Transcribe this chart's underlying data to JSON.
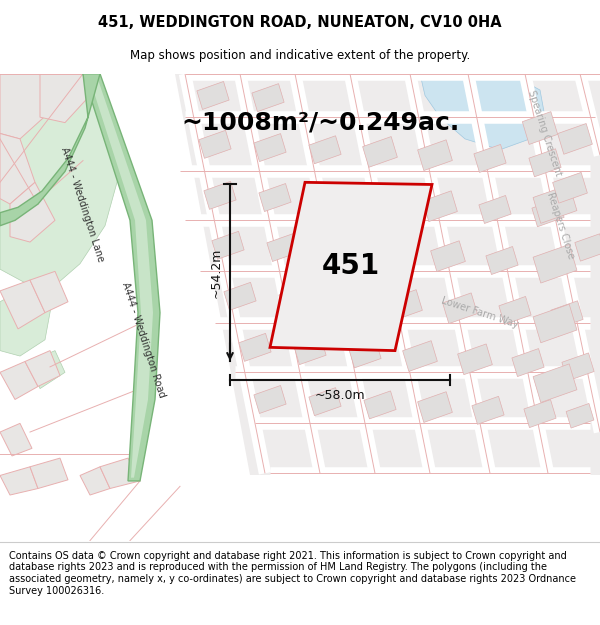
{
  "title": "451, WEDDINGTON ROAD, NUNEATON, CV10 0HA",
  "subtitle": "Map shows position and indicative extent of the property.",
  "area_text": "~1008m²/~0.249ac.",
  "label_451": "451",
  "dim_vertical": "~54.2m",
  "dim_horizontal": "~58.0m",
  "footer": "Contains OS data © Crown copyright and database right 2021. This information is subject to Crown copyright and database rights 2023 and is reproduced with the permission of HM Land Registry. The polygons (including the associated geometry, namely x, y co-ordinates) are subject to Crown copyright and database rights 2023 Ordnance Survey 100026316.",
  "bg_map": "#f5f4f2",
  "parcel_fill": "#e8e6e4",
  "parcel_border": "#e8b0b0",
  "road_fill": "#ffffff",
  "road_border": "#e8b0b0",
  "green_road_fill": "#a8d4a8",
  "green_road_border": "#78b478",
  "green_area_fill": "#d8ecd8",
  "green_area_border": "#b0d0b0",
  "blue_water": "#cce4f0",
  "blue_water_border": "#a0c8e0",
  "property_color": "#cc0000",
  "property_fill": "#f0eeee",
  "property_lw": 2.0,
  "dim_line_color": "#111111",
  "title_fontsize": 10.5,
  "subtitle_fontsize": 8.5,
  "area_fontsize": 18,
  "label_fontsize": 20,
  "dim_fontsize": 9,
  "road_label_fontsize": 7,
  "footer_fontsize": 7.0,
  "fig_width": 6.0,
  "fig_height": 6.25,
  "dpi": 100
}
